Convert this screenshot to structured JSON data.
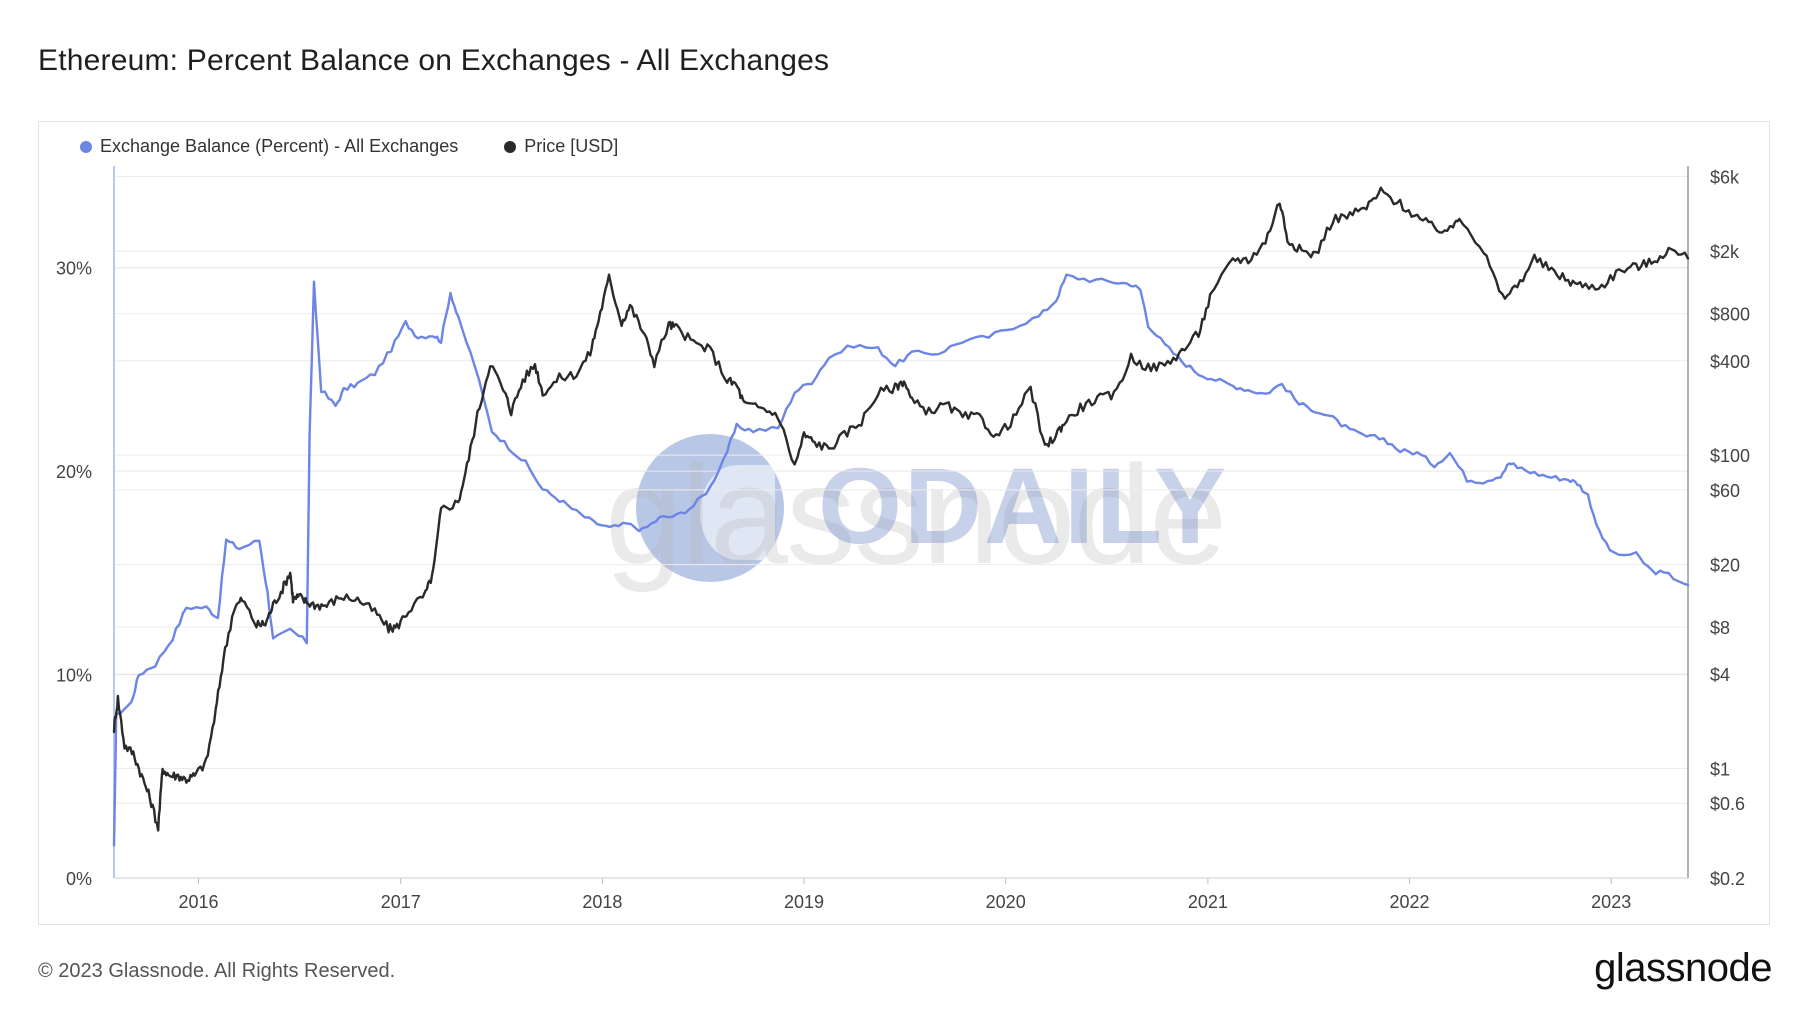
{
  "title": "Ethereum: Percent Balance on Exchanges - All Exchanges",
  "legend": [
    {
      "name": "Exchange Balance (Percent) - All Exchanges",
      "color": "#6c85e6"
    },
    {
      "name": "Price [USD]",
      "color": "#2a2a2a"
    }
  ],
  "footer": {
    "copyright": "© 2023 Glassnode. All Rights Reserved.",
    "logo": "glassnode"
  },
  "watermarks": {
    "glassnode": "glassnode",
    "odaily": "ODAILY"
  },
  "chart_data": {
    "type": "line",
    "title": "Ethereum: Percent Balance on Exchanges - All Exchanges",
    "grid": true,
    "legend_position": "top-left",
    "x_axis": {
      "type": "date",
      "range": [
        "2015-08-01",
        "2023-05-20"
      ],
      "tick_labels": [
        "2016",
        "2017",
        "2018",
        "2019",
        "2020",
        "2021",
        "2022",
        "2023"
      ]
    },
    "y_left": {
      "range": [
        0,
        35
      ],
      "unit": "%",
      "tick_values": [
        0,
        10,
        20,
        30
      ],
      "tick_labels": [
        "0%",
        "10%",
        "20%",
        "30%"
      ]
    },
    "y_right": {
      "scale": "log",
      "range": [
        0.2,
        7000
      ],
      "tick_values": [
        0.2,
        0.6,
        1,
        4,
        8,
        20,
        60,
        100,
        400,
        800,
        2000,
        6000
      ],
      "tick_labels": [
        "$0.2",
        "$0.6",
        "$1",
        "$4",
        "$8",
        "$20",
        "$60",
        "$100",
        "$400",
        "$800",
        "$2k",
        "$6k"
      ]
    },
    "series": [
      {
        "name": "Exchange Balance (Percent) - All Exchanges",
        "axis": "left",
        "color": "#6c85e6",
        "points": [
          [
            "2015-08-01",
            1.5
          ],
          [
            "2015-08-05",
            8.0
          ],
          [
            "2015-09-01",
            8.6
          ],
          [
            "2015-09-15",
            10.0
          ],
          [
            "2015-10-15",
            10.5
          ],
          [
            "2015-11-15",
            11.8
          ],
          [
            "2015-12-10",
            13.3
          ],
          [
            "2016-01-15",
            13.3
          ],
          [
            "2016-02-05",
            12.8
          ],
          [
            "2016-02-20",
            16.6
          ],
          [
            "2016-03-15",
            16.2
          ],
          [
            "2016-04-20",
            16.6
          ],
          [
            "2016-05-05",
            14.0
          ],
          [
            "2016-05-15",
            11.7
          ],
          [
            "2016-06-15",
            12.2
          ],
          [
            "2016-07-15",
            11.6
          ],
          [
            "2016-07-20",
            21.8
          ],
          [
            "2016-07-28",
            29.2
          ],
          [
            "2016-08-10",
            24.0
          ],
          [
            "2016-09-05",
            23.2
          ],
          [
            "2016-09-20",
            24.0
          ],
          [
            "2016-10-15",
            24.3
          ],
          [
            "2016-11-15",
            24.8
          ],
          [
            "2016-12-15",
            26.0
          ],
          [
            "2017-01-10",
            27.3
          ],
          [
            "2017-02-01",
            26.6
          ],
          [
            "2017-03-01",
            26.7
          ],
          [
            "2017-03-15",
            26.4
          ],
          [
            "2017-04-01",
            28.8
          ],
          [
            "2017-04-15",
            27.5
          ],
          [
            "2017-05-15",
            25.2
          ],
          [
            "2017-06-15",
            22.0
          ],
          [
            "2017-07-15",
            21.2
          ],
          [
            "2017-08-15",
            20.4
          ],
          [
            "2017-09-15",
            19.1
          ],
          [
            "2017-10-15",
            18.6
          ],
          [
            "2017-11-15",
            18.0
          ],
          [
            "2017-12-15",
            17.5
          ],
          [
            "2018-01-15",
            17.2
          ],
          [
            "2018-02-15",
            17.4
          ],
          [
            "2018-03-15",
            17.1
          ],
          [
            "2018-04-15",
            17.7
          ],
          [
            "2018-05-15",
            17.8
          ],
          [
            "2018-06-15",
            18.3
          ],
          [
            "2018-07-15",
            19.2
          ],
          [
            "2018-08-15",
            21.0
          ],
          [
            "2018-09-01",
            22.2
          ],
          [
            "2018-10-01",
            22.0
          ],
          [
            "2018-11-15",
            22.1
          ],
          [
            "2018-12-15",
            23.9
          ],
          [
            "2019-01-15",
            24.4
          ],
          [
            "2019-02-15",
            25.6
          ],
          [
            "2019-04-01",
            26.2
          ],
          [
            "2019-05-15",
            26.0
          ],
          [
            "2019-06-15",
            25.2
          ],
          [
            "2019-07-15",
            25.8
          ],
          [
            "2019-09-01",
            25.8
          ],
          [
            "2019-10-15",
            26.4
          ],
          [
            "2019-12-01",
            26.6
          ],
          [
            "2020-01-15",
            27.1
          ],
          [
            "2020-03-01",
            27.6
          ],
          [
            "2020-04-01",
            28.4
          ],
          [
            "2020-04-20",
            29.6
          ],
          [
            "2020-06-01",
            29.4
          ],
          [
            "2020-07-15",
            29.3
          ],
          [
            "2020-08-15",
            29.2
          ],
          [
            "2020-09-01",
            28.9
          ],
          [
            "2020-09-15",
            27.2
          ],
          [
            "2020-10-15",
            26.2
          ],
          [
            "2020-11-15",
            25.4
          ],
          [
            "2020-12-15",
            24.8
          ],
          [
            "2021-01-15",
            24.5
          ],
          [
            "2021-02-15",
            24.2
          ],
          [
            "2021-03-15",
            24.0
          ],
          [
            "2021-04-15",
            23.8
          ],
          [
            "2021-05-15",
            24.3
          ],
          [
            "2021-06-15",
            23.3
          ],
          [
            "2021-07-15",
            23.0
          ],
          [
            "2021-08-15",
            22.6
          ],
          [
            "2021-09-15",
            22.0
          ],
          [
            "2021-10-15",
            21.7
          ],
          [
            "2021-11-15",
            21.6
          ],
          [
            "2021-12-15",
            21.0
          ],
          [
            "2022-01-15",
            20.9
          ],
          [
            "2022-02-15",
            20.3
          ],
          [
            "2022-03-15",
            20.9
          ],
          [
            "2022-04-15",
            19.6
          ],
          [
            "2022-05-15",
            19.5
          ],
          [
            "2022-06-15",
            19.8
          ],
          [
            "2022-07-01",
            20.4
          ],
          [
            "2022-07-15",
            20.2
          ],
          [
            "2022-08-15",
            19.9
          ],
          [
            "2022-09-15",
            19.7
          ],
          [
            "2022-10-15",
            19.6
          ],
          [
            "2022-11-01",
            19.4
          ],
          [
            "2022-11-20",
            18.8
          ],
          [
            "2022-12-10",
            17.0
          ],
          [
            "2023-01-05",
            15.9
          ],
          [
            "2023-02-15",
            15.9
          ],
          [
            "2023-03-15",
            15.1
          ],
          [
            "2023-04-15",
            14.9
          ],
          [
            "2023-05-20",
            14.4
          ]
        ]
      },
      {
        "name": "Price [USD]",
        "axis": "right",
        "color": "#2a2a2a",
        "points": [
          [
            "2015-08-01",
            1.8
          ],
          [
            "2015-08-08",
            2.8
          ],
          [
            "2015-08-20",
            1.4
          ],
          [
            "2015-09-05",
            1.25
          ],
          [
            "2015-09-20",
            0.9
          ],
          [
            "2015-10-05",
            0.65
          ],
          [
            "2015-10-20",
            0.42
          ],
          [
            "2015-10-28",
            1.0
          ],
          [
            "2015-11-10",
            0.9
          ],
          [
            "2015-11-25",
            0.9
          ],
          [
            "2015-12-10",
            0.85
          ],
          [
            "2015-12-25",
            0.9
          ],
          [
            "2016-01-15",
            1.1
          ],
          [
            "2016-02-01",
            2.3
          ],
          [
            "2016-02-15",
            5.0
          ],
          [
            "2016-03-05",
            10.5
          ],
          [
            "2016-03-20",
            12.0
          ],
          [
            "2016-04-15",
            8.2
          ],
          [
            "2016-05-01",
            8.4
          ],
          [
            "2016-05-15",
            11.0
          ],
          [
            "2016-06-01",
            14.0
          ],
          [
            "2016-06-15",
            18.0
          ],
          [
            "2016-06-20",
            12.0
          ],
          [
            "2016-07-01",
            12.5
          ],
          [
            "2016-07-15",
            11.5
          ],
          [
            "2016-08-01",
            11.0
          ],
          [
            "2016-08-20",
            11.0
          ],
          [
            "2016-09-15",
            12.5
          ],
          [
            "2016-10-15",
            12.0
          ],
          [
            "2016-11-15",
            10.0
          ],
          [
            "2016-12-10",
            7.8
          ],
          [
            "2016-12-25",
            8.0
          ],
          [
            "2017-01-15",
            10.2
          ],
          [
            "2017-02-15",
            13.0
          ],
          [
            "2017-03-01",
            18.0
          ],
          [
            "2017-03-15",
            45.0
          ],
          [
            "2017-04-15",
            50.0
          ],
          [
            "2017-05-01",
            85.0
          ],
          [
            "2017-05-20",
            180.0
          ],
          [
            "2017-06-12",
            390.0
          ],
          [
            "2017-07-10",
            240.0
          ],
          [
            "2017-07-20",
            190.0
          ],
          [
            "2017-08-10",
            300.0
          ],
          [
            "2017-09-01",
            380.0
          ],
          [
            "2017-09-15",
            250.0
          ],
          [
            "2017-10-15",
            310.0
          ],
          [
            "2017-11-15",
            330.0
          ],
          [
            "2017-12-10",
            450.0
          ],
          [
            "2017-12-25",
            730.0
          ],
          [
            "2018-01-13",
            1350.0
          ],
          [
            "2018-02-05",
            700.0
          ],
          [
            "2018-02-20",
            900.0
          ],
          [
            "2018-03-15",
            620.0
          ],
          [
            "2018-04-05",
            390.0
          ],
          [
            "2018-05-01",
            680.0
          ],
          [
            "2018-05-15",
            650.0
          ],
          [
            "2018-06-15",
            520.0
          ],
          [
            "2018-07-15",
            470.0
          ],
          [
            "2018-08-15",
            300.0
          ],
          [
            "2018-09-01",
            280.0
          ],
          [
            "2018-09-15",
            210.0
          ],
          [
            "2018-10-15",
            200.0
          ],
          [
            "2018-11-15",
            180.0
          ],
          [
            "2018-12-15",
            85.0
          ],
          [
            "2019-01-01",
            135.0
          ],
          [
            "2019-01-20",
            120.0
          ],
          [
            "2019-02-15",
            110.0
          ],
          [
            "2019-03-15",
            135.0
          ],
          [
            "2019-04-15",
            165.0
          ],
          [
            "2019-05-15",
            250.0
          ],
          [
            "2019-06-15",
            270.0
          ],
          [
            "2019-07-01",
            300.0
          ],
          [
            "2019-07-15",
            220.0
          ],
          [
            "2019-08-15",
            190.0
          ],
          [
            "2019-09-15",
            210.0
          ],
          [
            "2019-10-15",
            175.0
          ],
          [
            "2019-11-15",
            175.0
          ],
          [
            "2019-12-15",
            130.0
          ],
          [
            "2020-01-15",
            170.0
          ],
          [
            "2020-02-15",
            270.0
          ],
          [
            "2020-03-12",
            110.0
          ],
          [
            "2020-04-01",
            135.0
          ],
          [
            "2020-04-15",
            160.0
          ],
          [
            "2020-05-15",
            200.0
          ],
          [
            "2020-06-15",
            230.0
          ],
          [
            "2020-07-15",
            240.0
          ],
          [
            "2020-08-15",
            420.0
          ],
          [
            "2020-09-15",
            360.0
          ],
          [
            "2020-10-15",
            375.0
          ],
          [
            "2020-11-15",
            460.0
          ],
          [
            "2020-12-15",
            600.0
          ],
          [
            "2021-01-05",
            1000.0
          ],
          [
            "2021-02-15",
            1800.0
          ],
          [
            "2021-03-15",
            1750.0
          ],
          [
            "2021-04-15",
            2300.0
          ],
          [
            "2021-05-11",
            4200.0
          ],
          [
            "2021-05-25",
            2400.0
          ],
          [
            "2021-06-20",
            2000.0
          ],
          [
            "2021-07-15",
            1900.0
          ],
          [
            "2021-08-15",
            3200.0
          ],
          [
            "2021-09-15",
            3400.0
          ],
          [
            "2021-10-15",
            3800.0
          ],
          [
            "2021-11-10",
            4800.0
          ],
          [
            "2021-12-15",
            4000.0
          ],
          [
            "2022-01-15",
            3300.0
          ],
          [
            "2022-02-15",
            2800.0
          ],
          [
            "2022-03-15",
            2700.0
          ],
          [
            "2022-04-01",
            3400.0
          ],
          [
            "2022-05-15",
            2000.0
          ],
          [
            "2022-06-18",
            1000.0
          ],
          [
            "2022-07-15",
            1200.0
          ],
          [
            "2022-08-15",
            1800.0
          ],
          [
            "2022-09-15",
            1500.0
          ],
          [
            "2022-10-15",
            1300.0
          ],
          [
            "2022-11-10",
            1200.0
          ],
          [
            "2022-12-15",
            1200.0
          ],
          [
            "2023-01-15",
            1500.0
          ],
          [
            "2023-02-15",
            1600.0
          ],
          [
            "2023-03-15",
            1700.0
          ],
          [
            "2023-04-15",
            2050.0
          ],
          [
            "2023-05-20",
            1800.0
          ]
        ]
      }
    ]
  }
}
